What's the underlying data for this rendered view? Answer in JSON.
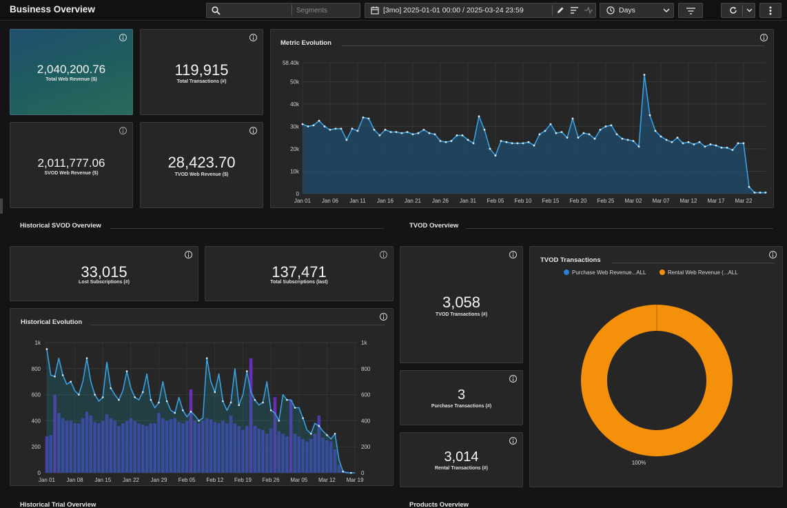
{
  "header": {
    "title": "Business Overview",
    "segments_placeholder": "Segments",
    "date_range": "[3mo] 2025-01-01 00:00 / 2025-03-24 23:59",
    "granularity": "Days"
  },
  "kpis": {
    "total_web_revenue": {
      "value": "2,040,200.76",
      "label": "Total Web Revenue ($)"
    },
    "total_transactions": {
      "value": "119,915",
      "label": "Total Transactions (#)"
    },
    "svod_web_revenue": {
      "value": "2,011,777.06",
      "label": "SVOD Web Revenue ($)"
    },
    "tvod_web_revenue": {
      "value": "28,423.70",
      "label": "TVOD Web Revenue ($)"
    },
    "lost_subscriptions": {
      "value": "33,015",
      "label": "Lost Subscriptions (#)"
    },
    "total_subscriptions": {
      "value": "137,471",
      "label": "Total Subscriptions (last)"
    },
    "tvod_transactions": {
      "value": "3,058",
      "label": "TVOD Transactions (#)"
    },
    "purchase_transactions": {
      "value": "3",
      "label": "Purchase Transactions (#)"
    },
    "rental_transactions": {
      "value": "3,014",
      "label": "Rental Transactions (#)"
    }
  },
  "sections": {
    "historical_svod": "Historical SVOD Overview",
    "tvod": "TVOD Overview",
    "historical_trial": "Historical Trial Overview",
    "products": "Products Overview"
  },
  "panels": {
    "metric_evolution": "Metric Evolution",
    "historical_evolution": "Historical Evolution",
    "tvod_transactions": "TVOD Transactions"
  },
  "colors": {
    "line": "#3aa0e0",
    "area": "#1f4e6e",
    "bar": "#4b3cb8",
    "bar_highlight": "#6a2fc0",
    "donut": "#f5900a",
    "purchase": "#2b7fd8"
  },
  "chart_data": [
    {
      "type": "area",
      "title": "Metric Evolution",
      "x_ticks": [
        "Jan 01",
        "Jan 06",
        "Jan 11",
        "Jan 16",
        "Jan 21",
        "Jan 26",
        "Jan 31",
        "Feb 05",
        "Feb 10",
        "Feb 15",
        "Feb 20",
        "Feb 25",
        "Mar 02",
        "Mar 07",
        "Mar 12",
        "Mar 17",
        "Mar 22"
      ],
      "y_ticks": [
        "0",
        "10k",
        "20k",
        "30k",
        "40k",
        "50k",
        "58.40k"
      ],
      "ylim": [
        0,
        58400
      ],
      "grid": true,
      "values": [
        31000,
        30000,
        30500,
        32500,
        30000,
        28500,
        29000,
        29000,
        24000,
        29000,
        28000,
        34000,
        33500,
        28500,
        26000,
        28500,
        27500,
        27500,
        27000,
        27500,
        26500,
        27000,
        28500,
        27000,
        26500,
        23500,
        23000,
        23500,
        26000,
        26000,
        24000,
        22500,
        34500,
        28500,
        20000,
        17000,
        23500,
        23000,
        22500,
        22500,
        22500,
        23000,
        21500,
        26500,
        28000,
        31000,
        27000,
        27500,
        25000,
        33500,
        25000,
        27000,
        26500,
        24500,
        28500,
        30000,
        30500,
        26500,
        24500,
        24000,
        23500,
        21000,
        53000,
        35000,
        28000,
        25500,
        24000,
        23000,
        25000,
        22500,
        23000,
        22000,
        23000,
        21000,
        22000,
        21500,
        20500,
        20500,
        19500,
        22500,
        22500,
        3000,
        500,
        500,
        500
      ]
    },
    {
      "type": "bar",
      "title": "Historical Evolution",
      "x_ticks": [
        "Jan 01",
        "Jan 08",
        "Jan 15",
        "Jan 22",
        "Jan 29",
        "Feb 05",
        "Feb 12",
        "Feb 19",
        "Feb 26",
        "Mar 05",
        "Mar 12",
        "Mar 19"
      ],
      "y_ticks": [
        "0",
        "200",
        "400",
        "600",
        "800",
        "1k"
      ],
      "ylim": [
        0,
        1000
      ],
      "bars": [
        280,
        290,
        600,
        460,
        420,
        400,
        400,
        380,
        380,
        420,
        470,
        440,
        390,
        380,
        400,
        450,
        420,
        400,
        360,
        380,
        400,
        420,
        400,
        380,
        370,
        360,
        380,
        380,
        460,
        420,
        400,
        410,
        420,
        390,
        380,
        400,
        640,
        400,
        380,
        400,
        420,
        410,
        390,
        380,
        400,
        380,
        440,
        380,
        360,
        330,
        360,
        880,
        360,
        340,
        330,
        300,
        340,
        580,
        320,
        300,
        280,
        560,
        300,
        280,
        260,
        240,
        260,
        300,
        440,
        270,
        250,
        240,
        180,
        60,
        20,
        10,
        0,
        0
      ],
      "line": [
        950,
        750,
        740,
        880,
        750,
        680,
        700,
        630,
        600,
        700,
        880,
        700,
        600,
        550,
        580,
        850,
        650,
        600,
        560,
        630,
        780,
        650,
        580,
        560,
        620,
        760,
        560,
        500,
        540,
        700,
        550,
        480,
        460,
        580,
        480,
        430,
        470,
        440,
        400,
        420,
        880,
        700,
        620,
        760,
        550,
        480,
        540,
        800,
        520,
        600,
        780,
        620,
        560,
        520,
        540,
        700,
        480,
        460,
        400,
        600,
        560,
        560,
        500,
        500,
        420,
        330,
        300,
        380,
        360,
        320,
        290,
        260,
        300,
        100,
        10,
        0,
        0,
        0
      ]
    },
    {
      "type": "pie",
      "title": "TVOD Transactions",
      "series": [
        {
          "name": "Purchase Web Revenue...ALL",
          "value": 0
        },
        {
          "name": "Rental Web Revenue (...ALL",
          "value": 100
        }
      ],
      "slice_label": "100%"
    }
  ]
}
